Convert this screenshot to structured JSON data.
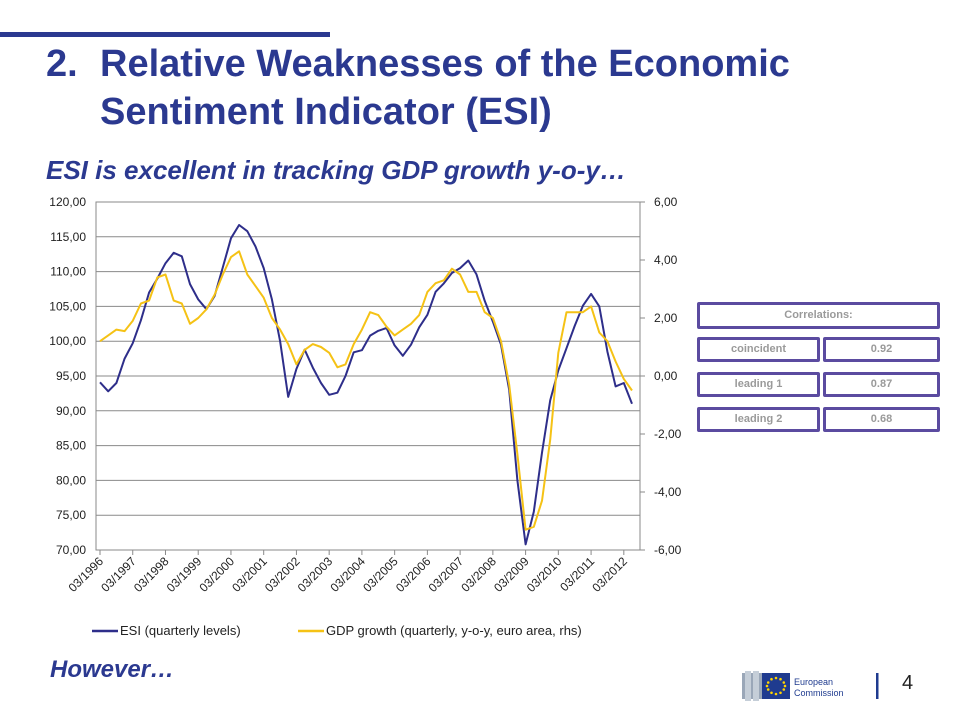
{
  "slide": {
    "number": "2.",
    "title": "Relative Weaknesses of the Economic Sentiment Indicator (ESI)",
    "subtitle": "ESI is excellent in tracking GDP growth y-o-y…",
    "footer": "However…",
    "page_number": "4",
    "logo_text_1": "European",
    "logo_text_2": "Commission"
  },
  "correlations": {
    "header": "Correlations:",
    "rows": [
      {
        "label": "coincident",
        "value": "0.92"
      },
      {
        "label": "leading 1",
        "value": "0.87"
      },
      {
        "label": "leading 2",
        "value": "0.68"
      }
    ]
  },
  "colors": {
    "title": "#2b3990",
    "esi_line": "#2e2e8a",
    "gdp_line": "#f5c215",
    "corr_border": "#5b4ba0"
  },
  "chart_data": {
    "type": "line",
    "x_tick_labels": [
      "03/1996",
      "03/1997",
      "03/1998",
      "03/1999",
      "03/2000",
      "03/2001",
      "03/2002",
      "03/2003",
      "03/2004",
      "03/2005",
      "03/2006",
      "03/2007",
      "03/2008",
      "03/2009",
      "03/2010",
      "03/2011",
      "03/2012"
    ],
    "y_left": {
      "min": 70,
      "max": 120,
      "ticks": [
        "70,00",
        "75,00",
        "80,00",
        "85,00",
        "90,00",
        "95,00",
        "100,00",
        "105,00",
        "110,00",
        "115,00",
        "120,00"
      ]
    },
    "y_right": {
      "min": -6,
      "max": 6,
      "ticks": [
        "-6,00",
        "-4,00",
        "-2,00",
        "0,00",
        "2,00",
        "4,00",
        "6,00"
      ]
    },
    "series": [
      {
        "name": "ESI (quarterly levels)",
        "axis": "left",
        "values": [
          94.1,
          92.8,
          94.0,
          97.5,
          99.7,
          103.0,
          107.0,
          109.0,
          111.2,
          112.7,
          112.2,
          108.2,
          106.0,
          104.6,
          106.5,
          110.6,
          114.8,
          116.7,
          115.8,
          113.6,
          110.5,
          106.0,
          100.0,
          92.0,
          96.0,
          98.8,
          96.2,
          94.0,
          92.3,
          92.6,
          95.0,
          98.4,
          98.7,
          100.8,
          101.5,
          101.9,
          99.4,
          97.9,
          99.5,
          102.0,
          103.8,
          107.1,
          108.3,
          109.8,
          110.5,
          111.6,
          109.6,
          105.8,
          102.8,
          99.5,
          93.0,
          80.0,
          70.8,
          75.5,
          84.0,
          91.5,
          95.8,
          99.0,
          102.2,
          105.1,
          106.8,
          105.0,
          98.5,
          93.5,
          94.0,
          91.0
        ]
      },
      {
        "name": "GDP growth (quarterly, y-o-y, euro area, rhs)",
        "axis": "right",
        "values": [
          1.2,
          1.4,
          1.6,
          1.55,
          1.9,
          2.5,
          2.6,
          3.4,
          3.5,
          2.6,
          2.5,
          1.8,
          2.0,
          2.3,
          2.8,
          3.5,
          4.1,
          4.3,
          3.5,
          3.1,
          2.7,
          2.0,
          1.6,
          1.1,
          0.4,
          0.9,
          1.1,
          1.0,
          0.8,
          0.3,
          0.4,
          1.1,
          1.6,
          2.2,
          2.1,
          1.7,
          1.4,
          1.6,
          1.8,
          2.1,
          2.9,
          3.2,
          3.3,
          3.7,
          3.5,
          2.9,
          2.9,
          2.2,
          2.0,
          1.2,
          -0.3,
          -2.7,
          -5.3,
          -5.2,
          -4.3,
          -2.2,
          0.8,
          2.2,
          2.2,
          2.2,
          2.4,
          1.5,
          1.2,
          0.5,
          -0.1,
          -0.5
        ]
      }
    ],
    "legend": "bottom"
  }
}
